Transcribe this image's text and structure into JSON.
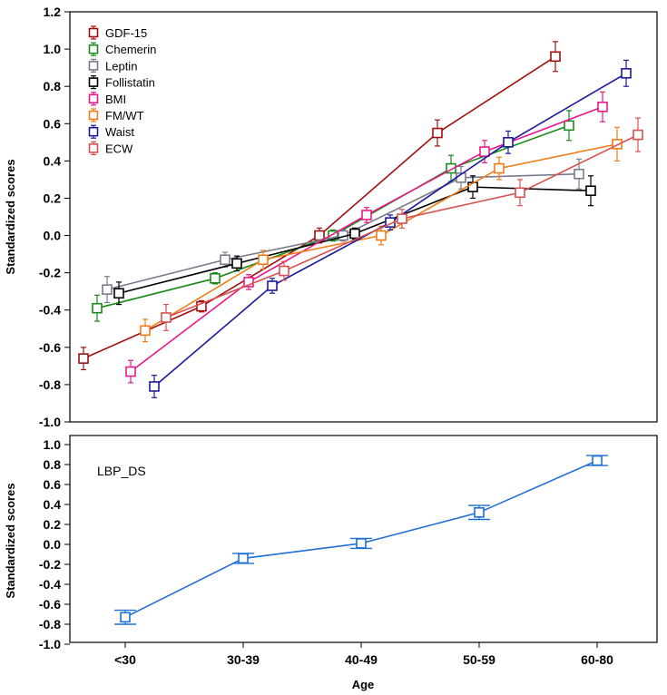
{
  "chart_data": [
    {
      "type": "line",
      "ylabel": "Standardized scores",
      "ylim": [
        -1.0,
        1.2
      ],
      "yticks": [
        "1.2",
        "1.0",
        "0.8",
        "0.6",
        "0.4",
        "0.2",
        "0.0",
        "-0.2",
        "-0.4",
        "-0.6",
        "-0.8",
        "-1.0"
      ],
      "categories": [
        "<30",
        "30-39",
        "40-49",
        "50-59",
        "60-80"
      ],
      "legend_position": "top-left",
      "grid": false,
      "series": [
        {
          "name": "GDF-15",
          "color": "#a01010",
          "values": [
            -0.66,
            -0.38,
            0.0,
            0.55,
            0.96
          ],
          "errors": [
            0.06,
            0.03,
            0.04,
            0.07,
            0.08
          ]
        },
        {
          "name": "Chemerin",
          "color": "#1a8a1a",
          "values": [
            -0.39,
            -0.23,
            0.0,
            0.36,
            0.59
          ],
          "errors": [
            0.07,
            0.03,
            0.03,
            0.07,
            0.08
          ]
        },
        {
          "name": "Leptin",
          "color": "#7a7a8c",
          "values": [
            -0.29,
            -0.13,
            0.0,
            0.31,
            0.33
          ],
          "errors": [
            0.07,
            0.04,
            0.03,
            0.06,
            0.08
          ]
        },
        {
          "name": "Follistatin",
          "color": "#000000",
          "values": [
            -0.31,
            -0.15,
            0.01,
            0.26,
            0.24
          ],
          "errors": [
            0.06,
            0.04,
            0.03,
            0.06,
            0.08
          ]
        },
        {
          "name": "BMI",
          "color": "#e8198c",
          "values": [
            -0.73,
            -0.25,
            0.11,
            0.45,
            0.69
          ],
          "errors": [
            0.06,
            0.04,
            0.04,
            0.06,
            0.08
          ]
        },
        {
          "name": "FM/WT",
          "color": "#f07c18",
          "values": [
            -0.51,
            -0.13,
            0.0,
            0.36,
            0.49
          ],
          "errors": [
            0.06,
            0.05,
            0.05,
            0.06,
            0.09
          ]
        },
        {
          "name": "Waist",
          "color": "#1a1a9c",
          "values": [
            -0.81,
            -0.27,
            0.07,
            0.5,
            0.87
          ],
          "errors": [
            0.06,
            0.04,
            0.04,
            0.06,
            0.07
          ]
        },
        {
          "name": "ECW",
          "color": "#d95050",
          "values": [
            -0.44,
            -0.19,
            0.09,
            0.23,
            0.54
          ],
          "errors": [
            0.07,
            0.05,
            0.05,
            0.07,
            0.09
          ]
        }
      ]
    },
    {
      "type": "line",
      "ylabel": "Standardized scores",
      "xlabel": "Age",
      "ylim": [
        -1.0,
        1.0
      ],
      "yticks": [
        "1.0",
        "0.8",
        "0.6",
        "0.4",
        "0.2",
        "0.0",
        "-0.2",
        "-0.4",
        "-0.6",
        "-0.8",
        "-1.0"
      ],
      "categories": [
        "<30",
        "30-39",
        "40-49",
        "50-59",
        "60-80"
      ],
      "panel_label": "LBP_DS",
      "grid": false,
      "series": [
        {
          "color": "#1f6fd6",
          "values": [
            -0.73,
            -0.14,
            0.01,
            0.32,
            0.84
          ],
          "errors": [
            0.07,
            0.05,
            0.05,
            0.07,
            0.05
          ]
        }
      ]
    }
  ]
}
